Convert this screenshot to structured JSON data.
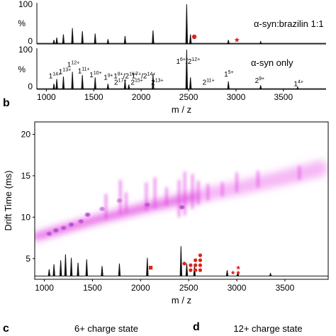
{
  "panel_labels": {
    "b": "b",
    "c": "c",
    "d": "d"
  },
  "bottom_titles": {
    "c": "6+ charge state",
    "d": "12+ charge state"
  },
  "colors": {
    "marker": "#e0201b",
    "spectrum": "#111111",
    "heat_low": "#f6b8f6",
    "heat_mid": "#e040e0",
    "heat_high": "#3a7fc8"
  },
  "chart_data": [
    {
      "type": "line",
      "title": "α-syn:brazilin 1:1",
      "ylabel": "%",
      "yticks": [
        "100",
        "0"
      ],
      "ylim": [
        0,
        100
      ],
      "xlim": [
        900,
        3950
      ],
      "peaks": [
        {
          "x": 1080,
          "y": 10
        },
        {
          "x": 1110,
          "y": 16
        },
        {
          "x": 1180,
          "y": 24
        },
        {
          "x": 1275,
          "y": 40
        },
        {
          "x": 1380,
          "y": 32
        },
        {
          "x": 1515,
          "y": 26
        },
        {
          "x": 1650,
          "y": 12
        },
        {
          "x": 1830,
          "y": 20
        },
        {
          "x": 2125,
          "y": 34
        },
        {
          "x": 2480,
          "y": 100
        },
        {
          "x": 2520,
          "y": 24
        },
        {
          "x": 2920,
          "y": 10
        },
        {
          "x": 3260,
          "y": 6
        }
      ],
      "markers": [
        {
          "x": 2560,
          "y": 18,
          "shape": "circle"
        },
        {
          "x": 3010,
          "y": 10,
          "shape": "star"
        }
      ]
    },
    {
      "type": "line",
      "title": "α-syn only",
      "ylabel": "%",
      "yticks": [
        "100",
        "0"
      ],
      "ylim": [
        0,
        100
      ],
      "xlim": [
        900,
        3950
      ],
      "xlabel": "m / z",
      "xticks": [
        1000,
        1500,
        2000,
        2500,
        3000,
        3500
      ],
      "peaks": [
        {
          "x": 1080,
          "y": 14
        },
        {
          "x": 1110,
          "y": 26
        },
        {
          "x": 1180,
          "y": 32
        },
        {
          "x": 1275,
          "y": 44
        },
        {
          "x": 1380,
          "y": 36
        },
        {
          "x": 1515,
          "y": 30
        },
        {
          "x": 1650,
          "y": 14
        },
        {
          "x": 1830,
          "y": 24
        },
        {
          "x": 1870,
          "y": 12
        },
        {
          "x": 2125,
          "y": 38
        },
        {
          "x": 2480,
          "y": 100
        },
        {
          "x": 2520,
          "y": 30
        },
        {
          "x": 2920,
          "y": 20
        },
        {
          "x": 3260,
          "y": 10
        },
        {
          "x": 3650,
          "y": 6
        }
      ],
      "annotations": [
        {
          "x": 1090,
          "y": 28,
          "base": "1",
          "sup": "14+"
        },
        {
          "x": 1195,
          "y": 38,
          "base": "1",
          "sup": "13+"
        },
        {
          "x": 1285,
          "y": 56,
          "base": "1",
          "sup": "12+"
        },
        {
          "x": 1395,
          "y": 40,
          "base": "1",
          "sup": "11+"
        },
        {
          "x": 1520,
          "y": 30,
          "base": "1",
          "sup": "10+"
        },
        {
          "x": 1655,
          "y": 24,
          "base": "1",
          "sup": "9+"
        },
        {
          "x": 1780,
          "y": 12,
          "base": "2",
          "sup": "17+"
        },
        {
          "x": 1835,
          "y": 28,
          "base": "1",
          "sup": "8+",
          "suffix": "/2",
          "sup2": "16+"
        },
        {
          "x": 2025,
          "y": 28,
          "base": "1",
          "sup": "7+",
          "suffix": "/2",
          "sup2": "14+"
        },
        {
          "x": 1955,
          "y": 12,
          "base": "2",
          "sup": "15+"
        },
        {
          "x": 2170,
          "y": 12,
          "base": "2",
          "sup": "13+"
        },
        {
          "x": 2495,
          "y": 64,
          "base": "1",
          "sup": "6+",
          "suffix": "/2",
          "sup2": "12+"
        },
        {
          "x": 2710,
          "y": 12,
          "base": "2",
          "sup": "11+"
        },
        {
          "x": 2925,
          "y": 32,
          "base": "1",
          "sup": "5+"
        },
        {
          "x": 3250,
          "y": 16,
          "base": "2",
          "sup": "9+"
        },
        {
          "x": 3660,
          "y": 8,
          "base": "1",
          "sup": "4+"
        }
      ]
    },
    {
      "type": "heatmap",
      "ylabel": "Drift Time (ms)",
      "xlabel": "m / z",
      "xlim": [
        900,
        3950
      ],
      "ylim": [
        2.5,
        21.5
      ],
      "xticks": [
        1000,
        1500,
        2000,
        2500,
        3000,
        3500
      ],
      "yticks": [
        5,
        10,
        15,
        20
      ],
      "band": [
        {
          "x": 900,
          "y": 7.6
        },
        {
          "x": 1500,
          "y": 9.6
        },
        {
          "x": 2100,
          "y": 11.3
        },
        {
          "x": 2500,
          "y": 12.3
        },
        {
          "x": 3000,
          "y": 13.5
        },
        {
          "x": 3500,
          "y": 14.8
        },
        {
          "x": 3880,
          "y": 15.9
        }
      ],
      "spots": [
        {
          "x": 1050,
          "y": 8.0,
          "v": 0.9
        },
        {
          "x": 1120,
          "y": 8.4,
          "v": 1.0
        },
        {
          "x": 1200,
          "y": 8.7,
          "v": 0.9
        },
        {
          "x": 1280,
          "y": 9.1,
          "v": 1.0
        },
        {
          "x": 1380,
          "y": 9.5,
          "v": 0.9
        },
        {
          "x": 1450,
          "y": 10.3,
          "v": 1.0
        },
        {
          "x": 1600,
          "y": 11.0,
          "v": 0.7
        },
        {
          "x": 1780,
          "y": 12.0,
          "v": 0.6
        },
        {
          "x": 2070,
          "y": 11.5,
          "v": 0.8
        },
        {
          "x": 2430,
          "y": 11.2,
          "v": 1.0
        }
      ],
      "streaks": [
        {
          "x": 1640,
          "y0": 9.8,
          "y1": 12.8
        },
        {
          "x": 1790,
          "y0": 10.3,
          "y1": 14.5
        },
        {
          "x": 1850,
          "y0": 10.5,
          "y1": 13.0
        },
        {
          "x": 2060,
          "y0": 10.8,
          "y1": 14.2
        },
        {
          "x": 2150,
          "y0": 11.1,
          "y1": 14.8
        },
        {
          "x": 2270,
          "y0": 11.4,
          "y1": 13.6
        },
        {
          "x": 2400,
          "y0": 10.0,
          "y1": 14.5
        },
        {
          "x": 2460,
          "y0": 10.2,
          "y1": 15.5
        },
        {
          "x": 2540,
          "y0": 11.0,
          "y1": 15.2
        },
        {
          "x": 2600,
          "y0": 11.5,
          "y1": 14.4
        },
        {
          "x": 2700,
          "y0": 12.0,
          "y1": 14.0
        },
        {
          "x": 2850,
          "y0": 12.5,
          "y1": 14.2
        },
        {
          "x": 3000,
          "y0": 13.0,
          "y1": 15.4
        },
        {
          "x": 3220,
          "y0": 13.6,
          "y1": 15.6
        },
        {
          "x": 3650,
          "y0": 14.5,
          "y1": 16.2
        }
      ],
      "overlay_peaks": [
        {
          "x": 1050,
          "h": 0.8
        },
        {
          "x": 1100,
          "h": 1.4
        },
        {
          "x": 1170,
          "h": 1.9
        },
        {
          "x": 1220,
          "h": 2.6
        },
        {
          "x": 1280,
          "h": 2.2
        },
        {
          "x": 1350,
          "h": 1.6
        },
        {
          "x": 1440,
          "h": 2.0
        },
        {
          "x": 1600,
          "h": 1.2
        },
        {
          "x": 1780,
          "h": 1.5
        },
        {
          "x": 2070,
          "h": 2.2
        },
        {
          "x": 2420,
          "h": 3.6
        },
        {
          "x": 2480,
          "h": 1.5
        },
        {
          "x": 2560,
          "h": 1.2
        },
        {
          "x": 2900,
          "h": 0.7
        },
        {
          "x": 3010,
          "h": 0.5
        },
        {
          "x": 3350,
          "h": 0.3
        }
      ],
      "overlay_markers": [
        {
          "x": 2105,
          "y": 3.9,
          "shape": "square"
        },
        {
          "x": 2455,
          "y": 4.4,
          "shape": "circle"
        },
        {
          "x": 2520,
          "y": 4.2,
          "shape": "circle"
        },
        {
          "x": 2520,
          "y": 3.6,
          "shape": "circle"
        },
        {
          "x": 2570,
          "y": 4.8,
          "shape": "circle"
        },
        {
          "x": 2570,
          "y": 4.2,
          "shape": "circle"
        },
        {
          "x": 2570,
          "y": 3.6,
          "shape": "circle"
        },
        {
          "x": 2620,
          "y": 5.4,
          "shape": "circle"
        },
        {
          "x": 2620,
          "y": 4.8,
          "shape": "circle"
        },
        {
          "x": 2620,
          "y": 4.2,
          "shape": "circle"
        },
        {
          "x": 2620,
          "y": 3.6,
          "shape": "circle"
        },
        {
          "x": 2960,
          "y": 3.3,
          "shape": "star"
        },
        {
          "x": 3015,
          "y": 3.3,
          "shape": "star"
        },
        {
          "x": 3015,
          "y": 3.9,
          "shape": "star"
        }
      ]
    }
  ]
}
